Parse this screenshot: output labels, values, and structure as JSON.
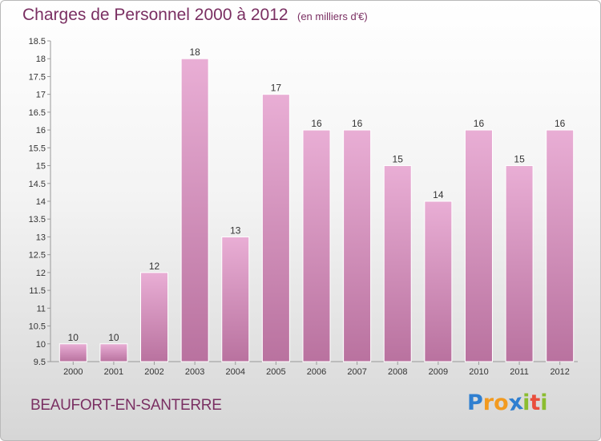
{
  "title": "Charges de Personnel 2000 à 2012",
  "subtitle": "(en milliers d'€)",
  "city": "BEAUFORT-EN-SANTERRE",
  "logo": {
    "letters": [
      "P",
      "r",
      "o",
      "x",
      "i",
      "t",
      "i"
    ],
    "colors": [
      "#2f7fd0",
      "#f29a1f",
      "#f29a1f",
      "#2f7fd0",
      "#8bbd2f",
      "#e94e3c",
      "#8bbd2f"
    ]
  },
  "colors": {
    "bar_top": "#e9aed5",
    "bar_bottom": "#b9729f",
    "bar_stroke": "#ffffff",
    "text": "#7a2f62",
    "axis_text": "#333333"
  },
  "chart_data": {
    "type": "bar",
    "title": "Charges de Personnel 2000 à 2012",
    "subtitle": "(en milliers d'€)",
    "categories": [
      "2000",
      "2001",
      "2002",
      "2003",
      "2004",
      "2005",
      "2006",
      "2007",
      "2008",
      "2009",
      "2010",
      "2011",
      "2012"
    ],
    "values": [
      10,
      10,
      12,
      18,
      13,
      17,
      16,
      16,
      15,
      14,
      16,
      15,
      16
    ],
    "data_labels": [
      "10",
      "10",
      "12",
      "18",
      "13",
      "17",
      "16",
      "16",
      "15",
      "14",
      "16",
      "15",
      "16"
    ],
    "ylim": [
      9.5,
      18.5
    ],
    "yticks": [
      9.5,
      10,
      10.5,
      11,
      11.5,
      12,
      12.5,
      13,
      13.5,
      14,
      14.5,
      15,
      15.5,
      16,
      16.5,
      17,
      17.5,
      18,
      18.5
    ],
    "ytick_labels": [
      "9.5",
      "10",
      "10.5",
      "11",
      "11.5",
      "12",
      "12.5",
      "13",
      "13.5",
      "14",
      "14.5",
      "15",
      "15.5",
      "16",
      "16.5",
      "17",
      "17.5",
      "18",
      "18.5"
    ],
    "xlabel": "",
    "ylabel": "",
    "grid": false,
    "legend": "none"
  }
}
